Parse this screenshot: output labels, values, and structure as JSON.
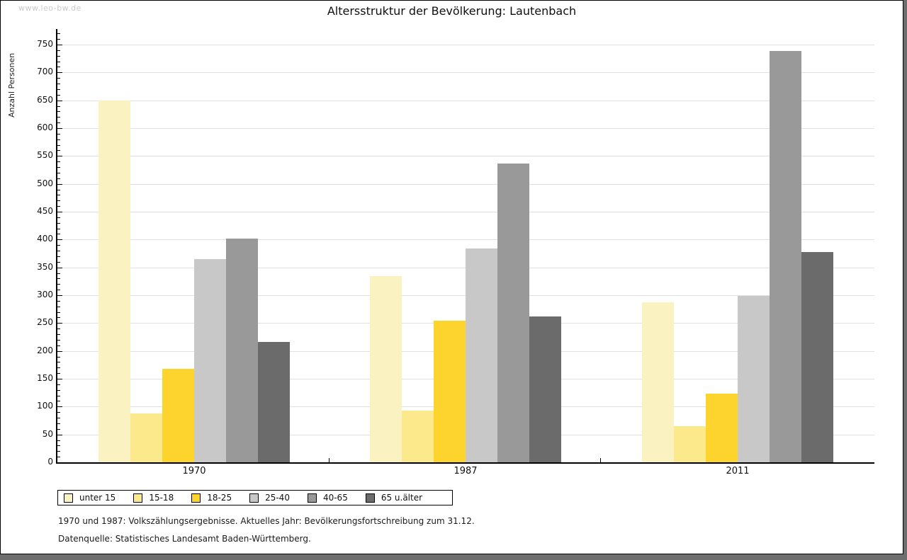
{
  "watermark": "www.leo-bw.de",
  "footer": {
    "line1": "1970 und 1987: Volkszählungsergebnisse. Aktuelles Jahr: Bevölkerungsfortschreibung zum 31.12.",
    "line2": "Datenquelle: Statistisches Landesamt Baden-Württemberg."
  },
  "colors": {
    "page_background": "#6E6E6E",
    "panel_background": "#FFFFFF",
    "gridline": "#E1E1E1",
    "axis": "#000000",
    "watermark": "#C9C9C9"
  },
  "chart_data": {
    "type": "bar",
    "title": "Altersstruktur der Bevölkerung: Lautenbach",
    "xlabel": "",
    "ylabel": "Anzahl Personen",
    "categories": [
      "1970",
      "1987",
      "2011"
    ],
    "series": [
      {
        "name": "unter 15",
        "color": "#FAF2C0",
        "values": [
          650,
          334,
          287
        ]
      },
      {
        "name": "15-18",
        "color": "#FCE98C",
        "values": [
          88,
          93,
          65
        ]
      },
      {
        "name": "18-25",
        "color": "#FCD42D",
        "values": [
          168,
          254,
          123
        ]
      },
      {
        "name": "25-40",
        "color": "#C8C8C8",
        "values": [
          365,
          384,
          299
        ]
      },
      {
        "name": "40-65",
        "color": "#999999",
        "values": [
          402,
          536,
          739
        ]
      },
      {
        "name": "65 u.älter",
        "color": "#6B6B6B",
        "values": [
          216,
          262,
          377
        ]
      }
    ],
    "ylim": [
      0,
      750
    ],
    "ytick_step": 50,
    "ytick_minor_step": 10,
    "ytick_labels": [
      "0",
      "50",
      "100",
      "150",
      "200",
      "250",
      "300",
      "350",
      "400",
      "450",
      "500",
      "550",
      "600",
      "650",
      "700",
      "750"
    ],
    "grid": true,
    "legend_position": "bottom"
  }
}
